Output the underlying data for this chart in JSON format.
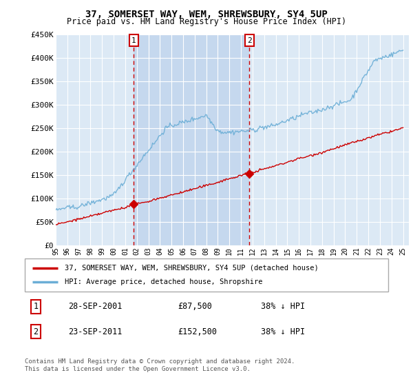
{
  "title": "37, SOMERSET WAY, WEM, SHREWSBURY, SY4 5UP",
  "subtitle": "Price paid vs. HM Land Registry's House Price Index (HPI)",
  "ylim": [
    0,
    450000
  ],
  "xlim_start": 1995.0,
  "xlim_end": 2025.5,
  "bg_color": "#dce9f5",
  "shade_color": "#c5d8ee",
  "sale1_date": 2001.74,
  "sale1_price": 87500,
  "sale2_date": 2011.73,
  "sale2_price": 152500,
  "legend_line1": "37, SOMERSET WAY, WEM, SHREWSBURY, SY4 5UP (detached house)",
  "legend_line2": "HPI: Average price, detached house, Shropshire",
  "table_row1": [
    "1",
    "28-SEP-2001",
    "£87,500",
    "38% ↓ HPI"
  ],
  "table_row2": [
    "2",
    "23-SEP-2011",
    "£152,500",
    "38% ↓ HPI"
  ],
  "footer": "Contains HM Land Registry data © Crown copyright and database right 2024.\nThis data is licensed under the Open Government Licence v3.0.",
  "hpi_color": "#6baed6",
  "price_color": "#cc0000",
  "vline_color": "#cc0000",
  "ytick_labels": [
    "£0",
    "£50K",
    "£100K",
    "£150K",
    "£200K",
    "£250K",
    "£300K",
    "£350K",
    "£400K",
    "£450K"
  ],
  "ytick_values": [
    0,
    50000,
    100000,
    150000,
    200000,
    250000,
    300000,
    350000,
    400000,
    450000
  ]
}
